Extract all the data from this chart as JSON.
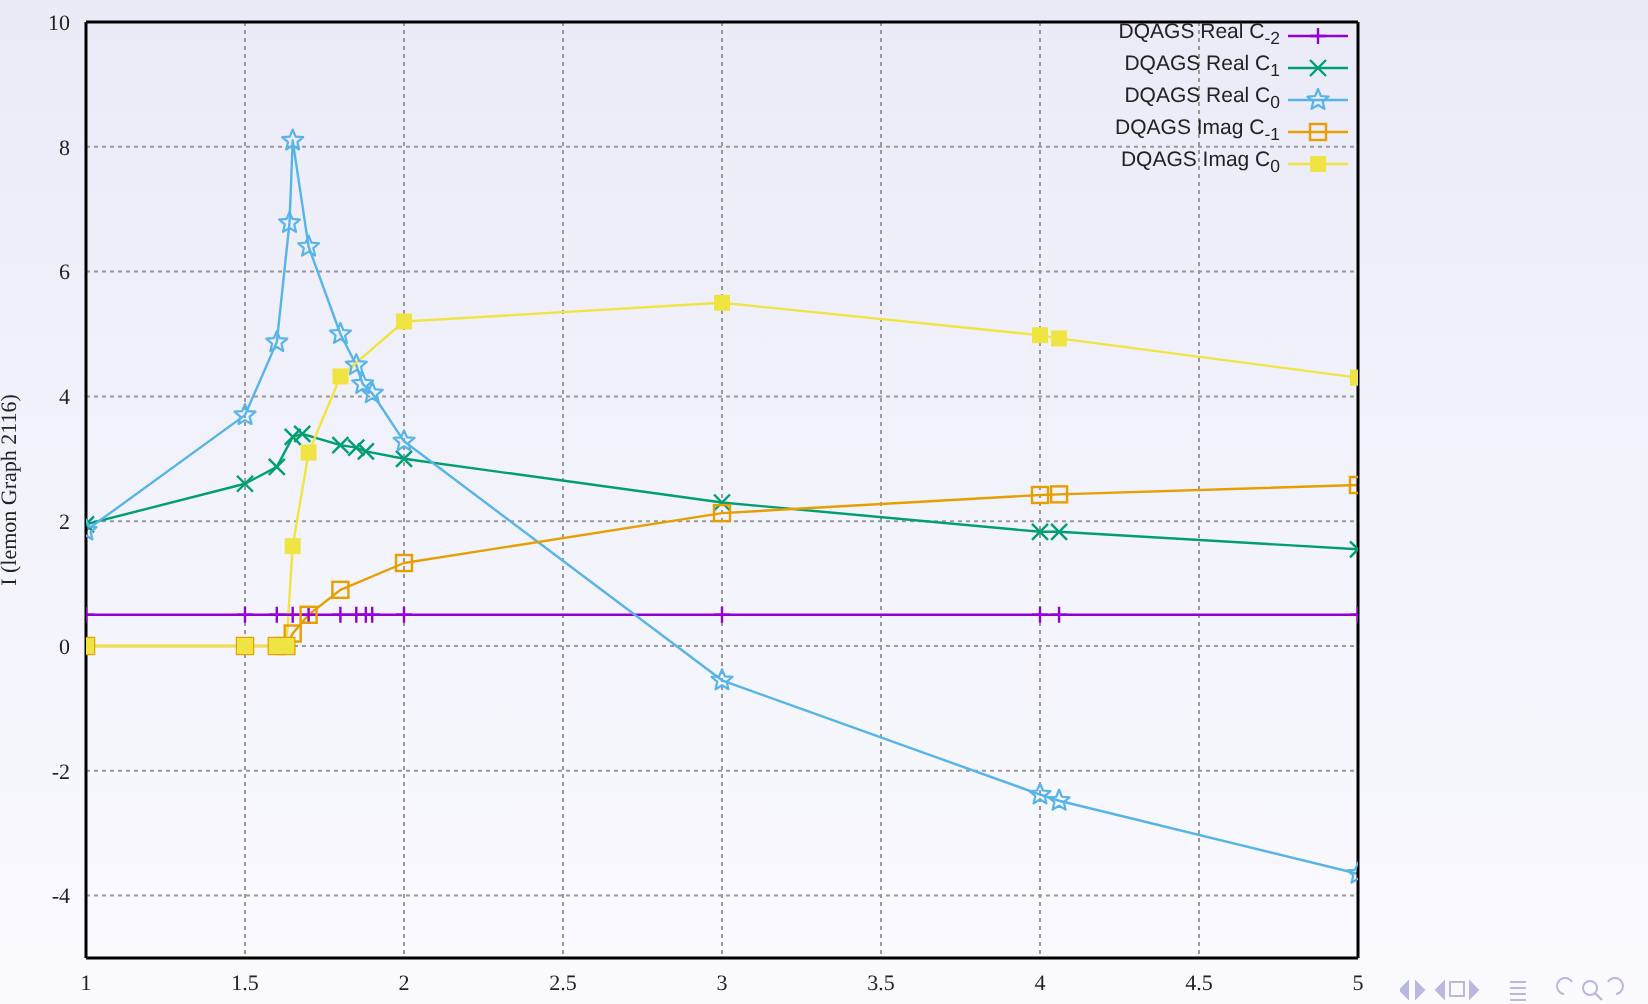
{
  "chart_data": {
    "type": "line",
    "ylabel": "I (lemon Graph 2116)",
    "xlim": [
      1,
      5
    ],
    "xticks": [
      1,
      1.5,
      2,
      2.5,
      3,
      3.5,
      4,
      4.5,
      5
    ],
    "ylim": [
      -5,
      10
    ],
    "yticks": [
      -4,
      -2,
      0,
      2,
      4,
      6,
      8,
      10
    ],
    "grid": true,
    "legend": "top right",
    "line_style": "solid",
    "series": [
      {
        "name": "DQAGS Real C$_{-2}$",
        "color": "#9400d3",
        "marker": "cross",
        "x": [
          1,
          1.5,
          1.6,
          1.65,
          1.7,
          1.8,
          1.85,
          1.88,
          1.9,
          2,
          3,
          4,
          4.06,
          5
        ],
        "values": [
          0.5,
          0.5,
          0.5,
          0.5,
          0.5,
          0.5,
          0.5,
          0.5,
          0.5,
          0.5,
          0.5,
          0.5,
          0.5,
          0.5
        ]
      },
      {
        "name": "DQAGS Real C$_{1}$",
        "color": "#009e73",
        "marker": "x",
        "x": [
          1,
          1.5,
          1.6,
          1.65,
          1.68,
          1.8,
          1.85,
          1.88,
          2,
          3,
          4,
          4.06,
          5
        ],
        "values": [
          1.95,
          2.6,
          2.87,
          3.35,
          3.4,
          3.22,
          3.18,
          3.12,
          3.0,
          2.3,
          1.83,
          1.83,
          1.55
        ]
      },
      {
        "name": "DQAGS Real C$_{0}$",
        "color": "#56b4e9",
        "marker": "star",
        "x": [
          1,
          1.5,
          1.6,
          1.64,
          1.65,
          1.7,
          1.8,
          1.85,
          1.87,
          1.9,
          2,
          3,
          4,
          4.06,
          5
        ],
        "values": [
          1.85,
          3.7,
          4.87,
          6.78,
          8.1,
          6.4,
          5.0,
          4.5,
          4.2,
          4.05,
          3.28,
          -0.55,
          -2.38,
          -2.48,
          -3.65
        ]
      },
      {
        "name": "DQAGS Imag C$_{-1}$",
        "color": "#e69f00",
        "marker": "square_open",
        "x": [
          1,
          1.5,
          1.6,
          1.63,
          1.65,
          1.7,
          1.8,
          2,
          3,
          4,
          4.06,
          5
        ],
        "values": [
          0,
          0,
          0,
          0,
          0.2,
          0.5,
          0.9,
          1.33,
          2.13,
          2.42,
          2.43,
          2.58
        ]
      },
      {
        "name": "DQAGS Imag C$_{0}$",
        "color": "#f0e442",
        "marker": "square",
        "x": [
          1,
          1.5,
          1.6,
          1.63,
          1.65,
          1.7,
          1.8,
          2,
          3,
          4,
          4.06,
          5
        ],
        "values": [
          0,
          0,
          0,
          0,
          1.6,
          3.1,
          4.32,
          5.2,
          5.5,
          4.98,
          4.93,
          4.3
        ]
      }
    ]
  }
}
